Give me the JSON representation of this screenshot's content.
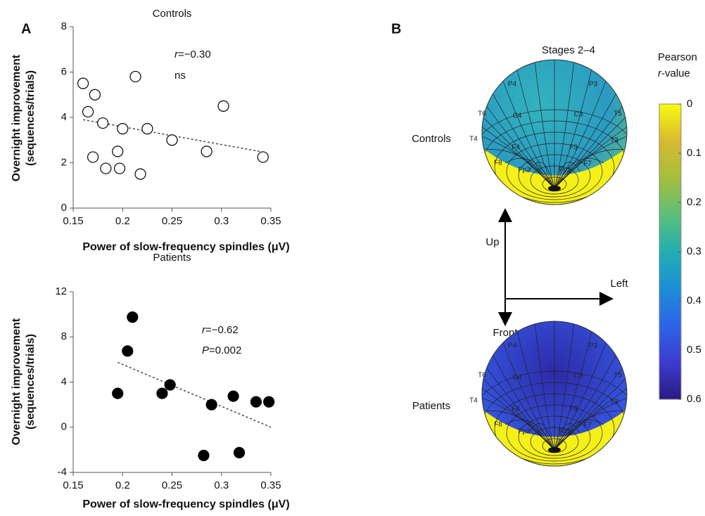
{
  "panel_labels": [
    "A",
    "B"
  ],
  "chart_data": [
    {
      "type": "scatter",
      "title": "Controls",
      "xlabel": "Power of slow-frequency spindles (μV)",
      "ylabel": [
        "Overnight improvement",
        "(sequences/trials)"
      ],
      "x": [
        0.16,
        0.165,
        0.172,
        0.17,
        0.18,
        0.183,
        0.195,
        0.197,
        0.2,
        0.213,
        0.218,
        0.225,
        0.25,
        0.285,
        0.302,
        0.342
      ],
      "values": [
        5.5,
        4.25,
        5.0,
        2.25,
        3.75,
        1.75,
        2.5,
        1.75,
        3.5,
        5.8,
        1.5,
        3.5,
        3.0,
        2.5,
        4.5,
        2.25
      ],
      "marker_fill": "#ffffff",
      "trend": {
        "x": [
          0.16,
          0.345
        ],
        "values": [
          3.9,
          2.45
        ]
      },
      "annotations": [
        {
          "italic": "r",
          "text": "=−0.30"
        },
        {
          "text": "ns"
        }
      ],
      "xlim": [
        0.15,
        0.35
      ],
      "xticks": [
        0.15,
        0.2,
        0.25,
        0.3,
        0.35
      ],
      "ylim": [
        0,
        8
      ],
      "yticks": [
        0,
        2,
        4,
        6,
        8
      ]
    },
    {
      "type": "scatter",
      "title": "Patients",
      "xlabel": "Power of slow-frequency spindles (μV)",
      "ylabel": [
        "Overnight improvement",
        "(sequences/trials)"
      ],
      "x": [
        0.195,
        0.205,
        0.21,
        0.24,
        0.248,
        0.282,
        0.29,
        0.312,
        0.318,
        0.335,
        0.348
      ],
      "values": [
        3.0,
        6.75,
        9.75,
        3.0,
        3.75,
        -2.5,
        2.0,
        2.75,
        -2.25,
        2.25,
        2.25
      ],
      "marker_fill": "#000000",
      "trend": {
        "x": [
          0.195,
          0.35
        ],
        "values": [
          5.75,
          0
        ]
      },
      "annotations": [
        {
          "italic": "r",
          "text": "=−0.62"
        },
        {
          "italic": "P",
          "text": "=0.002"
        }
      ],
      "xlim": [
        0.15,
        0.35
      ],
      "xticks": [
        0.15,
        0.2,
        0.25,
        0.3,
        0.35
      ],
      "ylim": [
        -4,
        12
      ],
      "yticks": [
        -4,
        0,
        4,
        8,
        12
      ]
    },
    {
      "type": "colorbar",
      "label": [
        {
          "text": "Pearson"
        },
        {
          "italic": "r",
          "text": "-value"
        }
      ],
      "colors": [
        "#f9fb0e",
        "#d8ba30",
        "#a5be3c",
        "#5cbf7a",
        "#23aeb0",
        "#1c8ed6",
        "#2e64e8",
        "#3c3ccf",
        "#2a1a82"
      ],
      "ylim": [
        0.6,
        0
      ],
      "yticks": [
        0,
        0.1,
        0.2,
        0.3,
        0.4,
        0.5,
        0.6
      ]
    }
  ],
  "diagram": {
    "title": "Stages 2–4",
    "rows": [
      "Controls",
      "Patients"
    ],
    "arrows": {
      "up": "Up",
      "left": "Left",
      "front": "Front"
    },
    "electrodes": [
      "P4",
      "P3",
      "T6",
      "C4",
      "C3",
      "T5",
      "T4",
      "F4",
      "F3",
      "T3",
      "F8",
      "Fp2",
      "Fp1",
      "F7"
    ]
  }
}
